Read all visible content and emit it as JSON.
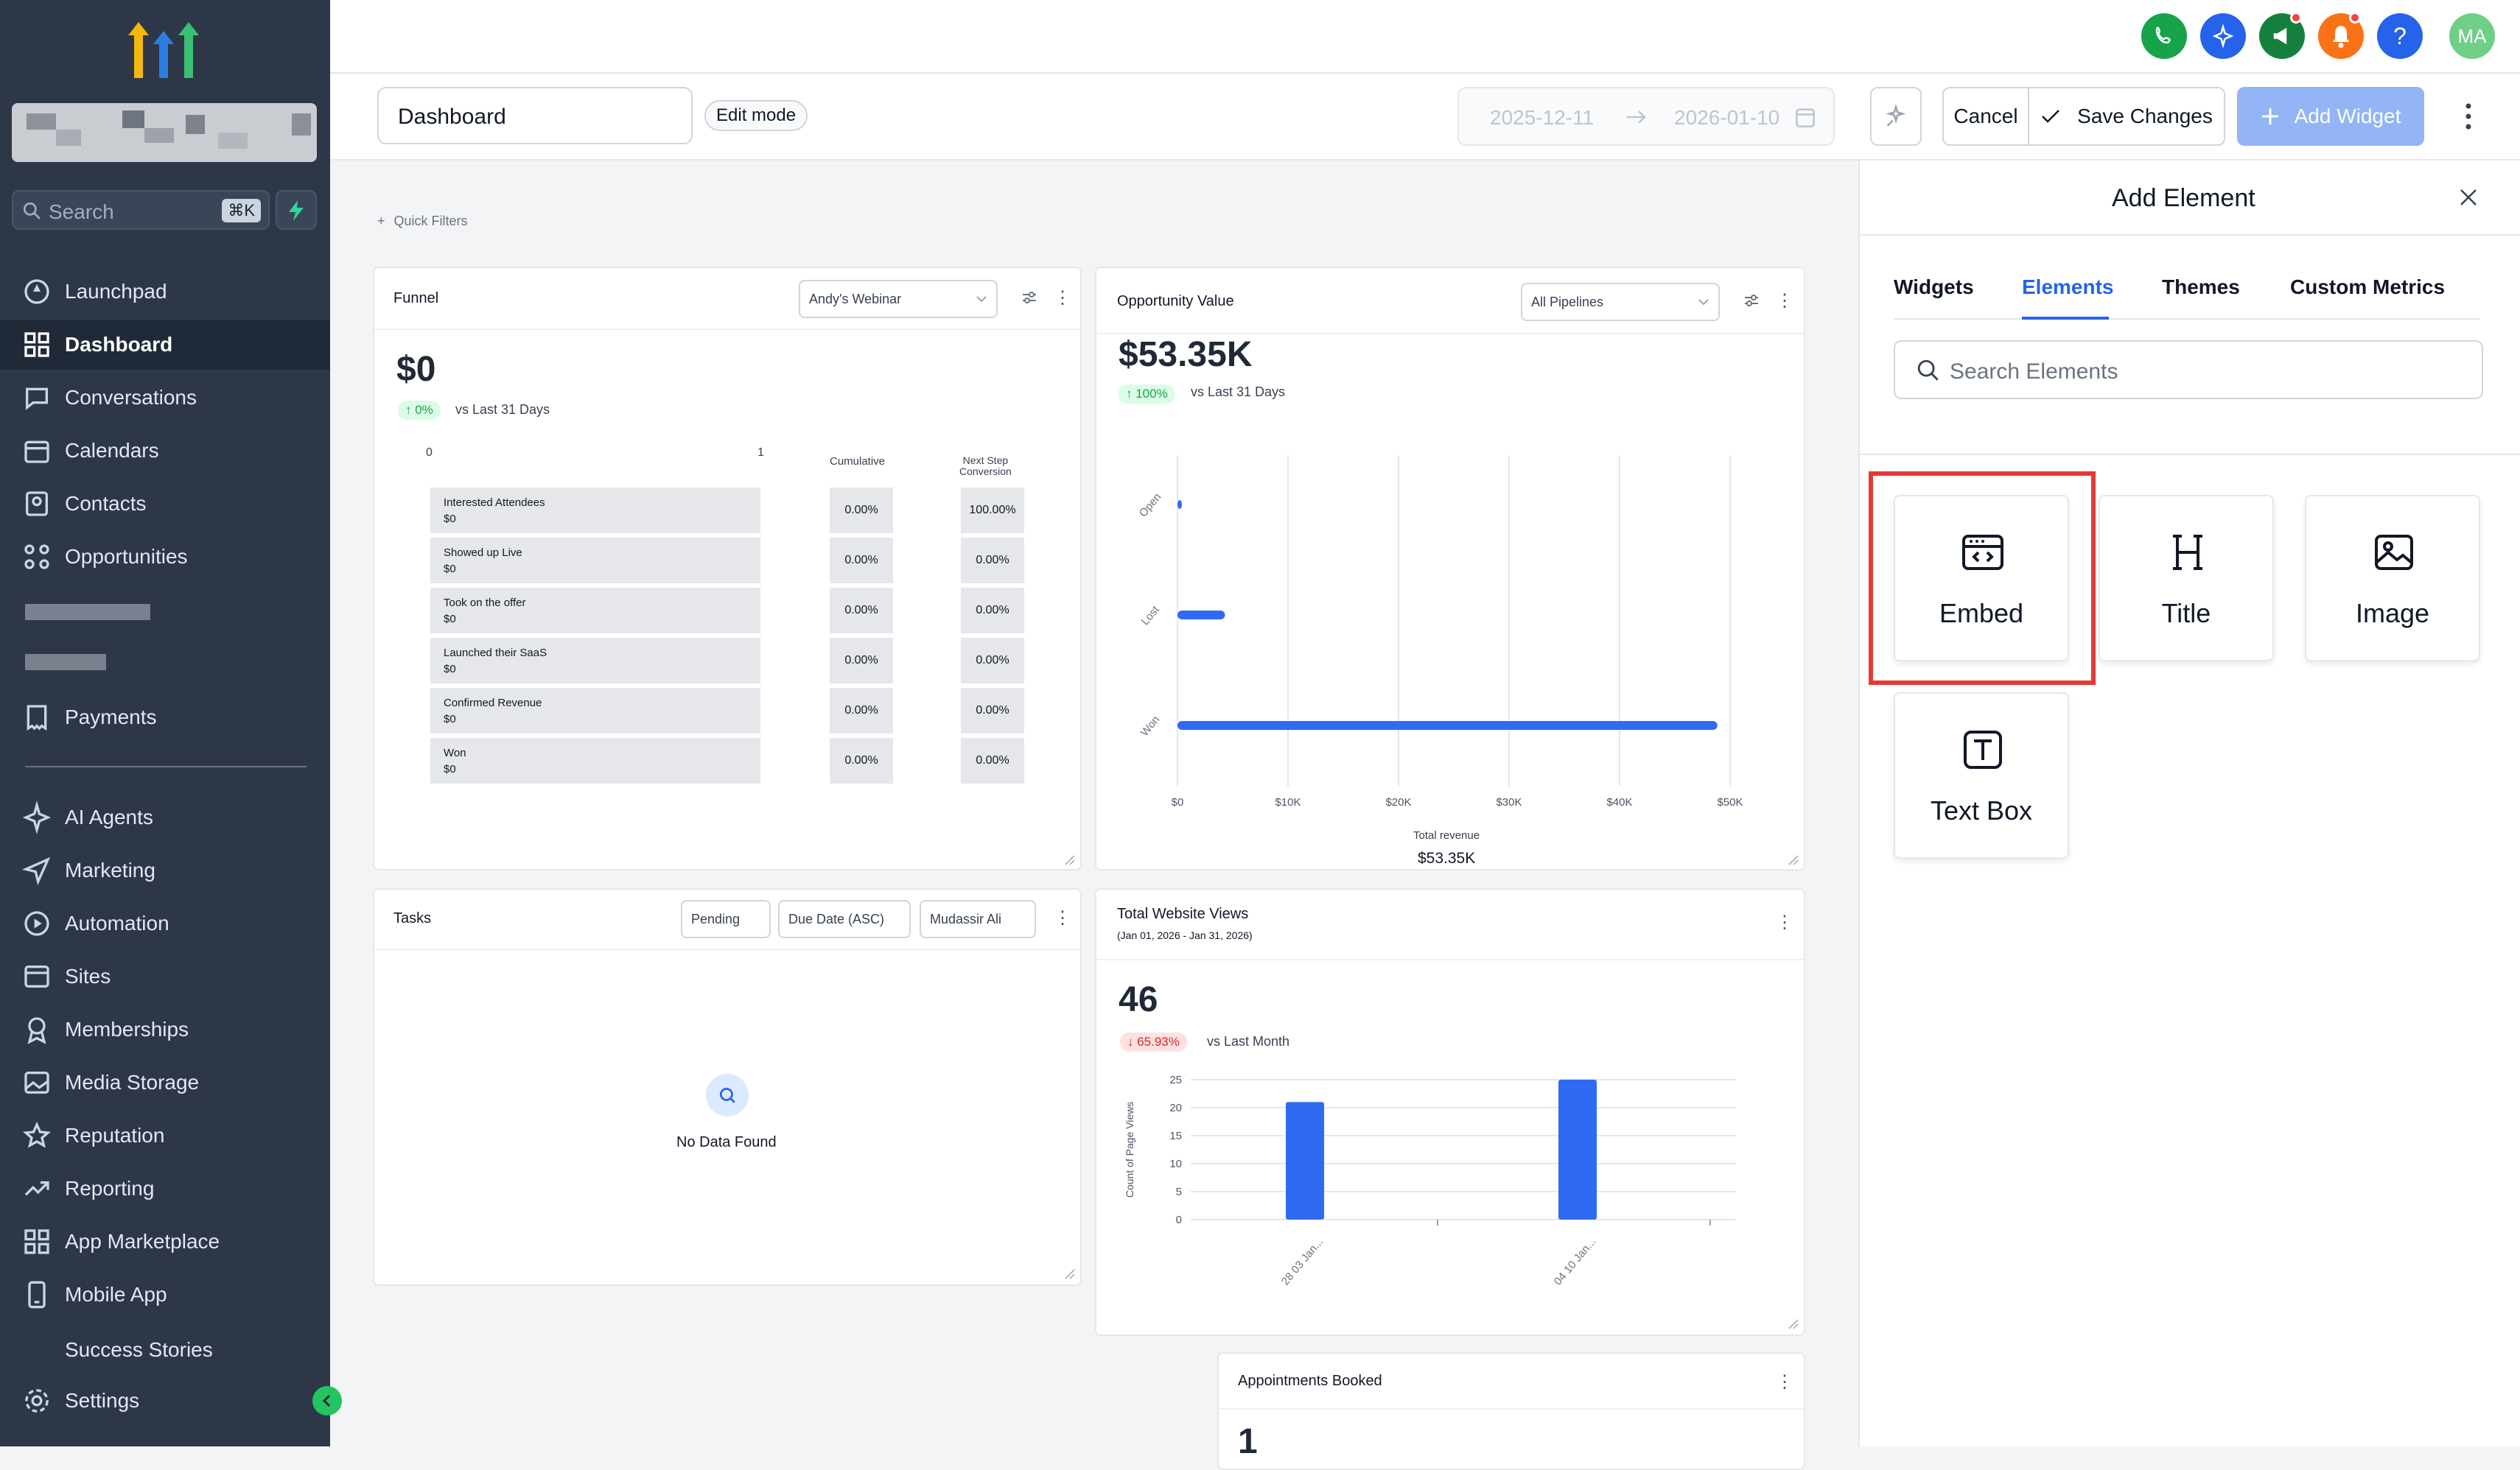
{
  "sidebar": {
    "search_placeholder": "Search",
    "search_shortcut": "⌘K",
    "items": [
      {
        "label": "Launchpad",
        "icon": "rocket-icon"
      },
      {
        "label": "Dashboard",
        "icon": "grid-icon",
        "active": true
      },
      {
        "label": "Conversations",
        "icon": "chat-icon"
      },
      {
        "label": "Calendars",
        "icon": "calendar-icon"
      },
      {
        "label": "Contacts",
        "icon": "contacts-icon"
      },
      {
        "label": "Opportunities",
        "icon": "opportunities-icon"
      },
      {
        "label": "Payments",
        "icon": "receipt-icon"
      },
      {
        "label": "AI Agents",
        "icon": "sparkle-icon"
      },
      {
        "label": "Marketing",
        "icon": "send-icon"
      },
      {
        "label": "Automation",
        "icon": "play-icon"
      },
      {
        "label": "Sites",
        "icon": "sites-icon"
      },
      {
        "label": "Memberships",
        "icon": "badge-icon"
      },
      {
        "label": "Media Storage",
        "icon": "image-icon"
      },
      {
        "label": "Reputation",
        "icon": "star-icon"
      },
      {
        "label": "Reporting",
        "icon": "trend-icon"
      },
      {
        "label": "App Marketplace",
        "icon": "apps-icon"
      },
      {
        "label": "Mobile App",
        "icon": "phone-icon"
      },
      {
        "label": "Settings",
        "icon": "gear-icon"
      }
    ],
    "partial_item": "Success Stories"
  },
  "topbar": {
    "avatar_initials": "MA",
    "help": "?"
  },
  "toolbar": {
    "dashboard_name": "Dashboard",
    "edit_mode": "Edit mode",
    "date_start": "2025-12-11",
    "date_end": "2026-01-10",
    "cancel": "Cancel",
    "save": "Save Changes",
    "add_widget": "Add Widget"
  },
  "quick_filters": "Quick Filters",
  "funnel": {
    "title": "Funnel",
    "filter": "Andy's Webinar",
    "value": "$0",
    "change": "↑ 0%",
    "vs": "vs Last 31 Days",
    "axis_min": "0",
    "axis_max": "1",
    "col_cumulative": "Cumulative",
    "col_next_line1": "Next Step",
    "col_next_line2": "Conversion",
    "rows": [
      {
        "name": "Interested Attendees",
        "amount": "$0",
        "cumulative": "0.00%",
        "next": "100.00%"
      },
      {
        "name": "Showed up Live",
        "amount": "$0",
        "cumulative": "0.00%",
        "next": "0.00%"
      },
      {
        "name": "Took on the offer",
        "amount": "$0",
        "cumulative": "0.00%",
        "next": "0.00%"
      },
      {
        "name": "Launched their SaaS",
        "amount": "$0",
        "cumulative": "0.00%",
        "next": "0.00%"
      },
      {
        "name": "Confirmed Revenue",
        "amount": "$0",
        "cumulative": "0.00%",
        "next": "0.00%"
      },
      {
        "name": "Won",
        "amount": "$0",
        "cumulative": "0.00%",
        "next": "0.00%"
      }
    ]
  },
  "opportunity": {
    "title": "Opportunity Value",
    "filter": "All Pipelines",
    "value": "$53.35K",
    "change": "↑ 100%",
    "vs": "vs Last 31 Days",
    "x_title": "Total revenue",
    "x_total": "$53.35K",
    "x_ticks": [
      "$0",
      "$10K",
      "$20K",
      "$30K",
      "$40K",
      "$50K"
    ]
  },
  "tasks": {
    "title": "Tasks",
    "filter_status": "Pending",
    "filter_sort": "Due Date (ASC)",
    "filter_user": "Mudassir Ali",
    "empty": "No Data Found"
  },
  "website_views": {
    "title": "Total Website Views",
    "subtitle": "(Jan 01, 2026 - Jan 31, 2026)",
    "value": "46",
    "change": "↓ 65.93%",
    "vs": "vs Last Month",
    "ylabel": "Count of Page Views"
  },
  "appointments": {
    "title": "Appointments Booked",
    "value": "1"
  },
  "panel": {
    "title": "Add Element",
    "tabs": [
      "Widgets",
      "Elements",
      "Themes",
      "Custom Metrics"
    ],
    "active_tab": "Elements",
    "search_placeholder": "Search Elements",
    "elements": [
      "Embed",
      "Title",
      "Image",
      "Text Box"
    ]
  },
  "colors": {
    "accent": "#2563eb",
    "sidebar_bg": "#2d3748",
    "highlight": "#e53935",
    "bar": "#2f6bf2"
  },
  "chart_data": [
    {
      "type": "bar",
      "orientation": "horizontal",
      "categories": [
        "Open",
        "Lost",
        "Won"
      ],
      "values": [
        200,
        4300,
        48850
      ],
      "xlim": [
        0,
        50000
      ],
      "x_ticks": [
        "$0",
        "$10K",
        "$20K",
        "$30K",
        "$40K",
        "$50K"
      ],
      "xlabel": "Total revenue",
      "ylabel": ""
    },
    {
      "type": "bar",
      "categories": [
        "28 03 Jan...",
        "04 10 Jan..."
      ],
      "values": [
        21,
        25
      ],
      "ylim": [
        0,
        25
      ],
      "y_ticks": [
        0,
        5,
        10,
        15,
        20,
        25
      ],
      "xlabel": "",
      "ylabel": "Count of Page Views"
    }
  ]
}
